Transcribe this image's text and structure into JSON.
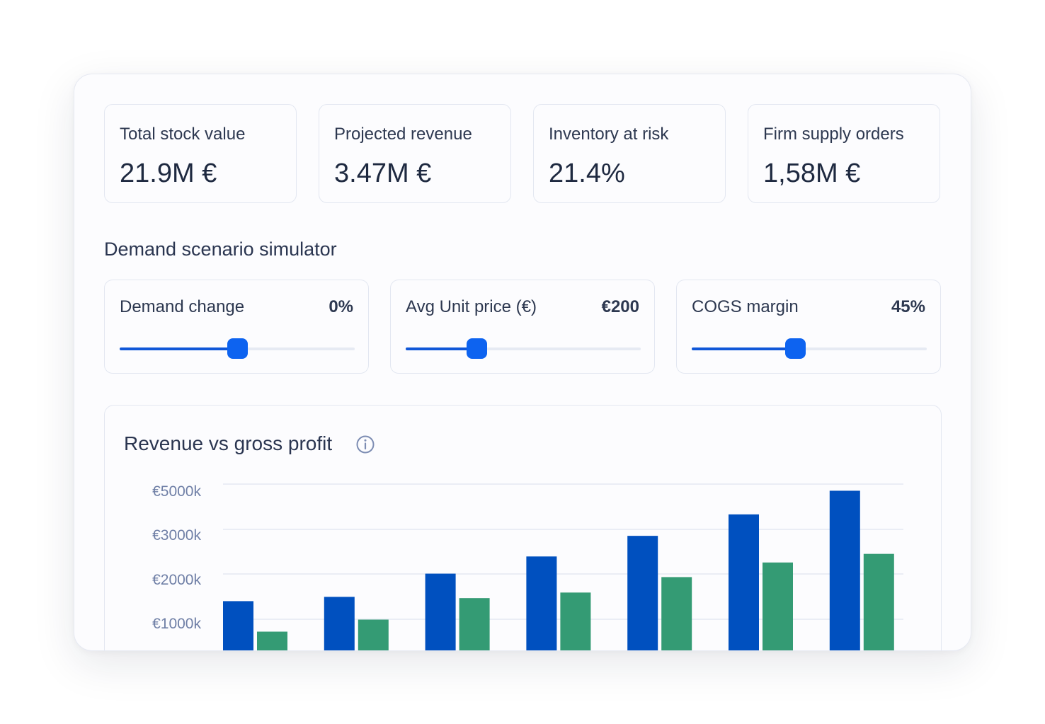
{
  "kpis": [
    {
      "label": "Total stock value",
      "value": "21.9M €"
    },
    {
      "label": "Projected revenue",
      "value": "3.47M €"
    },
    {
      "label": "Inventory at risk",
      "value": "21.4%"
    },
    {
      "label": "Firm supply orders",
      "value": "1,58M €"
    }
  ],
  "simulator": {
    "title": "Demand scenario simulator",
    "sliders": [
      {
        "label": "Demand change",
        "value": "0%",
        "fraction": 0.5
      },
      {
        "label": "Avg Unit price (€)",
        "value": "€200",
        "fraction": 0.3
      },
      {
        "label": "COGS margin",
        "value": "45%",
        "fraction": 0.44
      }
    ]
  },
  "chart": {
    "title": "Revenue vs gross profit",
    "info_icon": "info-icon"
  },
  "colors": {
    "accent": "#0d63f0",
    "revenue_bar": "#0050bf",
    "profit_bar": "#349b74"
  },
  "chart_data": {
    "type": "bar",
    "title": "Revenue vs gross profit",
    "xlabel": "",
    "ylabel": "",
    "y_ticks": [
      "€5000k",
      "€3000k",
      "€2000k",
      "€1000k"
    ],
    "categories": [
      "",
      "",
      "",
      "",
      "",
      "",
      ""
    ],
    "series": [
      {
        "values": [
          1130,
          1230,
          1770,
          2170,
          2650,
          3150,
          3700
        ]
      },
      {
        "values": [
          420,
          700,
          1200,
          1330,
          1690,
          2030,
          2230
        ]
      }
    ],
    "grid": true,
    "legend": "none"
  }
}
